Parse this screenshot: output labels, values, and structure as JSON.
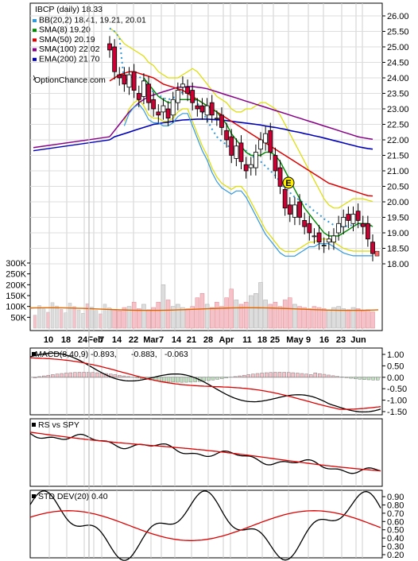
{
  "chart_data": [
    {
      "type": "candlestick",
      "title": "IBCP (daily) 18.33",
      "legend": [
        {
          "label": "BB(20,2) 18.41, 19.21, 20.01",
          "color": "#3399dd"
        },
        {
          "label": "SMA(8) 19.20",
          "color": "#008800"
        },
        {
          "label": "SMA(50) 20.19",
          "color": "#dd0000"
        },
        {
          "label": "SMA(100) 22.02",
          "color": "#880088"
        },
        {
          "label": "EMA(200) 21.70",
          "color": "#0000bb"
        }
      ],
      "watermark": "OptionChance.com",
      "earnings_marker": "E",
      "y_ticks": [
        "26.00",
        "25.50",
        "25.00",
        "24.50",
        "24.00",
        "23.50",
        "23.00",
        "22.50",
        "22.00",
        "21.50",
        "21.00",
        "20.50",
        "20.00",
        "19.50",
        "19.00",
        "18.50",
        "18.00"
      ],
      "ylim": [
        18.0,
        26.0
      ],
      "volume_ticks": [
        "300K",
        "250K",
        "200K",
        "150K",
        "100K",
        "50K"
      ],
      "volume_lim": [
        0,
        300000
      ],
      "x_ticks": [
        "10",
        "18",
        "24",
        "Feb",
        "7",
        "14",
        "22",
        "Mar",
        "7",
        "14",
        "21",
        "28",
        "Apr",
        "11",
        "18",
        "25",
        "May",
        "9",
        "16",
        "23",
        "Jun"
      ],
      "closes": [
        24.9,
        24.2,
        24.0,
        23.8,
        24.1,
        23.6,
        23.3,
        23.9,
        23.2,
        23.0,
        22.8,
        23.1,
        22.7,
        23.3,
        23.6,
        23.8,
        23.5,
        23.2,
        23.0,
        22.9,
        23.1,
        22.8,
        22.7,
        22.4,
        22.0,
        21.5,
        21.8,
        21.3,
        21.0,
        21.2,
        21.6,
        22.0,
        22.2,
        21.6,
        21.0,
        20.5,
        19.8,
        19.6,
        19.9,
        19.5,
        19.2,
        19.0,
        18.9,
        18.7,
        18.6,
        18.8,
        18.9,
        19.3,
        19.5,
        19.4,
        19.6,
        19.4,
        19.2,
        18.8,
        18.33
      ],
      "sma8": [
        null,
        null,
        null,
        null,
        null,
        null,
        null,
        24.0,
        23.8,
        23.6,
        23.4,
        23.3,
        23.2,
        23.2,
        23.3,
        23.3,
        23.3,
        23.3,
        23.3,
        23.2,
        23.1,
        23.0,
        22.9,
        22.7,
        22.5,
        22.2,
        22.0,
        21.8,
        21.6,
        21.5,
        21.5,
        21.5,
        21.6,
        21.6,
        21.5,
        21.3,
        21.0,
        20.7,
        20.4,
        20.1,
        19.8,
        19.6,
        19.4,
        19.2,
        19.0,
        18.9,
        18.9,
        18.9,
        19.0,
        19.1,
        19.2,
        19.3,
        19.3,
        19.3,
        19.2
      ],
      "sma50": [
        23.9,
        24.0,
        24.1,
        24.15,
        24.2,
        24.2,
        24.15,
        24.1,
        24.05,
        24.0,
        23.9,
        23.8,
        23.75,
        23.7,
        23.65,
        23.6,
        23.5,
        23.4,
        23.3,
        23.2,
        23.1,
        23.0,
        22.9,
        22.8,
        22.7,
        22.6,
        22.5,
        22.4,
        22.3,
        22.2,
        22.1,
        22.0,
        21.9,
        21.8,
        21.7,
        21.6,
        21.5,
        21.4,
        21.3,
        21.2,
        21.1,
        21.0,
        20.9,
        20.8,
        20.7,
        20.6,
        20.55,
        20.5,
        20.45,
        20.4,
        20.35,
        20.3,
        20.25,
        20.2,
        20.19
      ],
      "sma100": [
        22.1,
        22.3,
        22.5,
        22.7,
        22.9,
        23.05,
        23.2,
        23.3,
        23.4,
        23.45,
        23.5,
        23.55,
        23.6,
        23.65,
        23.7,
        23.7,
        23.72,
        23.72,
        23.7,
        23.68,
        23.65,
        23.6,
        23.55,
        23.5,
        23.45,
        23.4,
        23.35,
        23.3,
        23.25,
        23.2,
        23.15,
        23.1,
        23.05,
        23.0,
        22.95,
        22.9,
        22.85,
        22.8,
        22.75,
        22.7,
        22.65,
        22.6,
        22.55,
        22.5,
        22.45,
        22.4,
        22.35,
        22.3,
        22.25,
        22.2,
        22.15,
        22.1,
        22.07,
        22.04,
        22.02
      ],
      "ema200": [
        22.0,
        22.1,
        22.15,
        22.2,
        22.25,
        22.3,
        22.35,
        22.4,
        22.45,
        22.5,
        22.52,
        22.55,
        22.57,
        22.6,
        22.62,
        22.64,
        22.65,
        22.66,
        22.67,
        22.67,
        22.67,
        22.66,
        22.65,
        22.64,
        22.62,
        22.6,
        22.58,
        22.56,
        22.54,
        22.52,
        22.5,
        22.48,
        22.45,
        22.42,
        22.4,
        22.37,
        22.34,
        22.3,
        22.27,
        22.24,
        22.2,
        22.17,
        22.13,
        22.1,
        22.06,
        22.02,
        21.98,
        21.94,
        21.9,
        21.86,
        21.82,
        21.78,
        21.75,
        21.72,
        21.7
      ],
      "bb_upper": [
        25.6,
        25.5,
        25.3,
        25.1,
        25.0,
        24.9,
        24.8,
        24.7,
        24.5,
        24.4,
        24.2,
        24.1,
        24.0,
        24.0,
        24.0,
        24.1,
        24.2,
        24.3,
        24.2,
        24.0,
        23.8,
        23.6,
        23.4,
        23.3,
        23.2,
        23.0,
        22.9,
        22.9,
        23.0,
        23.0,
        23.1,
        23.2,
        23.2,
        23.1,
        23.0,
        22.8,
        22.5,
        22.2,
        21.9,
        21.6,
        21.3,
        21.0,
        20.7,
        20.4,
        20.1,
        19.9,
        19.8,
        19.8,
        19.9,
        20.0,
        20.1,
        20.1,
        20.1,
        20.05,
        20.01
      ],
      "bb_lower": [
        null,
        null,
        null,
        22.6,
        23.0,
        23.2,
        23.3,
        23.1,
        22.8,
        22.7,
        22.7,
        22.6,
        22.6,
        22.7,
        22.9,
        23.0,
        23.0,
        22.6,
        22.2,
        21.8,
        21.5,
        21.1,
        20.8,
        20.6,
        20.5,
        20.4,
        20.5,
        20.5,
        20.3,
        20.0,
        19.7,
        19.4,
        19.1,
        18.9,
        18.7,
        18.5,
        18.4,
        18.4,
        18.4,
        18.5,
        18.6,
        18.7,
        18.7,
        18.8,
        18.8,
        18.8,
        18.7,
        18.6,
        18.5,
        18.45,
        18.41,
        18.41,
        18.41,
        18.41,
        18.41
      ],
      "volume": [
        90000,
        85000,
        80000,
        95000,
        100000,
        120000,
        90000,
        110000,
        85000,
        95000,
        120000,
        200000,
        130000,
        100000,
        110000,
        95000,
        90000,
        100000,
        140000,
        160000,
        110000,
        95000,
        120000,
        100000,
        140000,
        180000,
        130000,
        110000,
        120000,
        150000,
        160000,
        210000,
        130000,
        110000,
        120000,
        100000,
        130000,
        140000,
        110000,
        100000,
        95000,
        90000,
        100000,
        95000,
        90000,
        85000,
        95000,
        100000,
        90000,
        85000,
        95000,
        90000,
        80000,
        85000,
        75000
      ]
    },
    {
      "type": "line",
      "title": "MACD(8,40,9) -0.893, -0.883, -0.063",
      "legend": [
        {
          "label": "MACD(8,40,9) -0.893,",
          "color": "#000000"
        },
        {
          "label": "-0.883,",
          "color": "#dd0000"
        },
        {
          "label": "-0.063",
          "color": "#0000bb"
        }
      ],
      "y_ticks": [
        "1.00",
        "0.50",
        "0.00",
        "-0.50",
        "-1.00",
        "-1.50"
      ],
      "ylim": [
        -1.5,
        1.0
      ]
    },
    {
      "type": "line",
      "title": "RS vs SPY",
      "series": [
        {
          "name": "RS vs SPY"
        }
      ]
    },
    {
      "type": "line",
      "title": "STD DEV(20) 0.40",
      "y_ticks": [
        "0.90",
        "0.80",
        "0.70",
        "0.60",
        "0.50",
        "0.40",
        "0.30",
        "0.20"
      ],
      "ylim": [
        0.2,
        0.9
      ]
    }
  ]
}
